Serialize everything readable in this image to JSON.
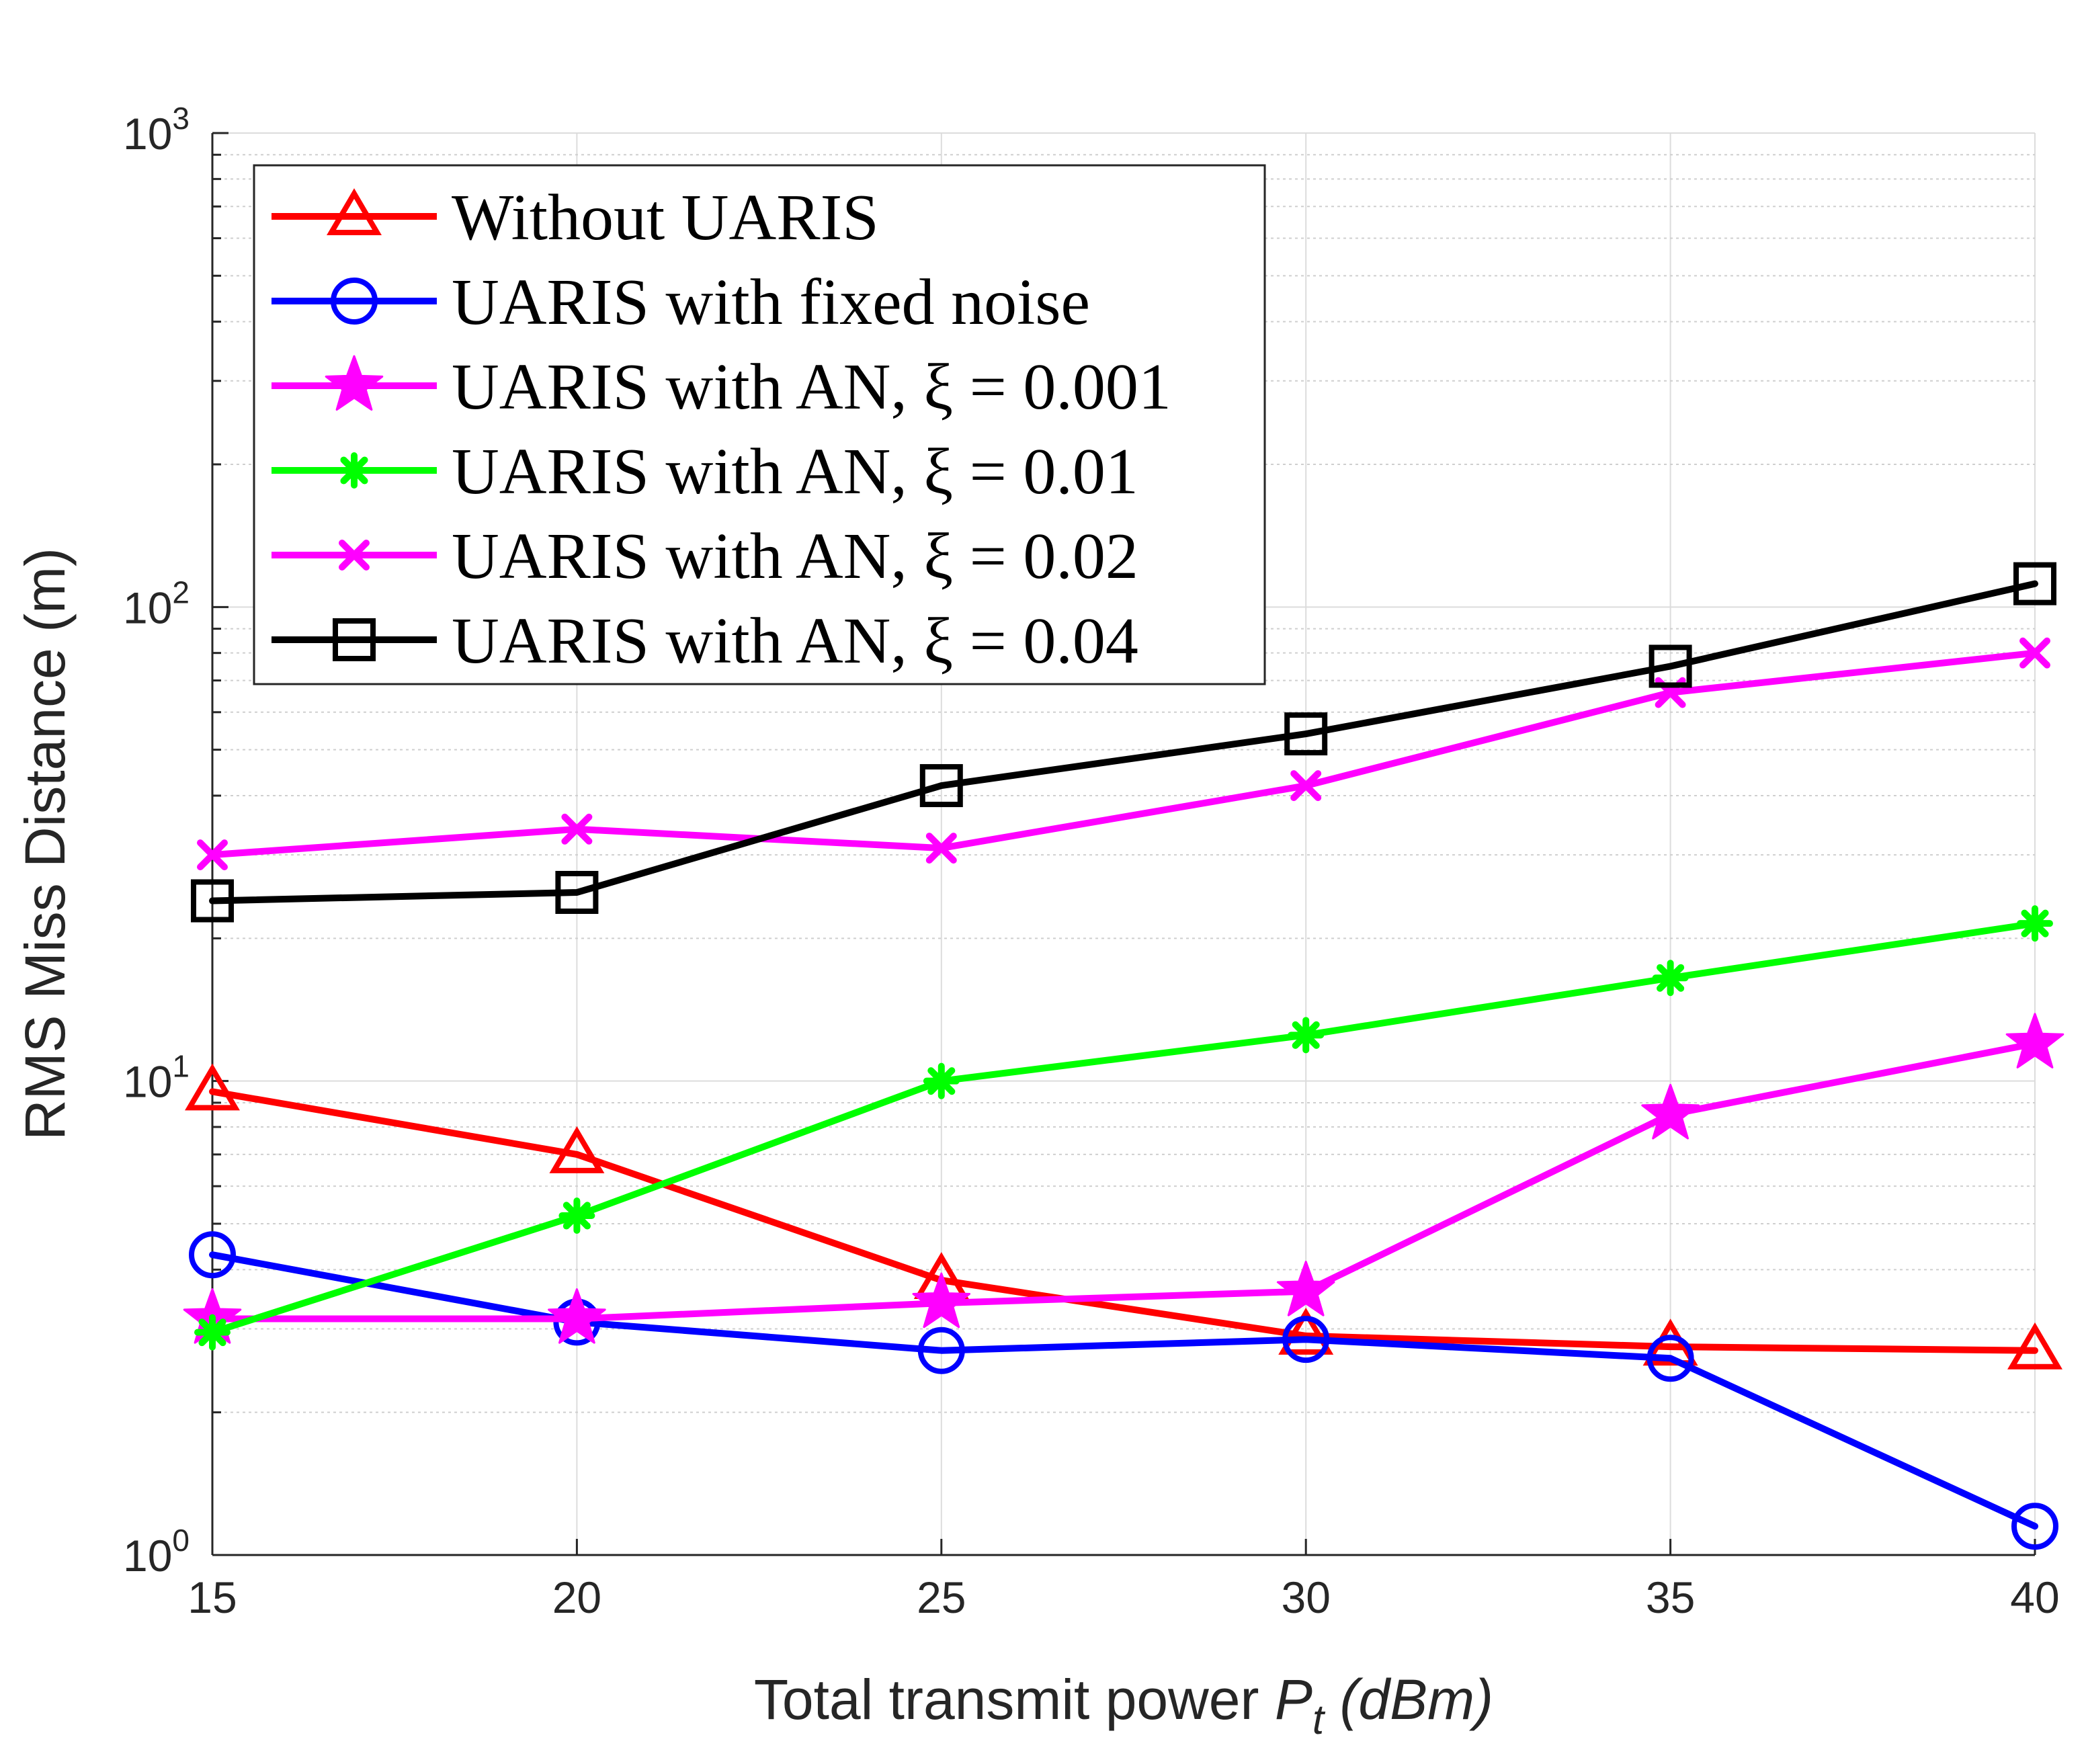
{
  "chart_data": {
    "type": "line",
    "title": "",
    "xlabel": "Total transmit power",
    "xlabel_symbol": "P",
    "xlabel_subscript": "t",
    "xlabel_unit": "(dBm)",
    "ylabel": "RMS Miss Distance (m)",
    "yscale": "log",
    "xlim": [
      15,
      40
    ],
    "ylim": [
      1,
      1000
    ],
    "grid": true,
    "legend_position": "top-left",
    "x": [
      15,
      20,
      25,
      30,
      35,
      40
    ],
    "x_tick_labels": [
      "15",
      "20",
      "25",
      "30",
      "35",
      "40"
    ],
    "y_ticks": [
      {
        "base": "10",
        "exp": "0"
      },
      {
        "base": "10",
        "exp": "1"
      },
      {
        "base": "10",
        "exp": "2"
      },
      {
        "base": "10",
        "exp": "3"
      }
    ],
    "series": [
      {
        "name": "Without UARIS",
        "color": "#ff0000",
        "marker": "triangle",
        "values": [
          9.5,
          7.0,
          3.8,
          2.9,
          2.75,
          2.7
        ]
      },
      {
        "name": "UARIS with fixed noise",
        "color": "#0000ff",
        "marker": "circle",
        "values": [
          4.3,
          3.1,
          2.7,
          2.85,
          2.6,
          1.15
        ]
      },
      {
        "name": "UARIS with AN, ξ = 0.001",
        "color": "#ff00ff",
        "marker": "star",
        "values": [
          3.15,
          3.15,
          3.4,
          3.6,
          8.5,
          12.0
        ]
      },
      {
        "name": "UARIS with AN, ξ = 0.01",
        "color": "#00ff00",
        "marker": "asterisk",
        "values": [
          2.95,
          5.2,
          10.0,
          12.5,
          16.5,
          21.5
        ]
      },
      {
        "name": "UARIS with AN, ξ = 0.02",
        "color": "#ff00ff",
        "marker": "x",
        "values": [
          30,
          34,
          31,
          42,
          66,
          80
        ]
      },
      {
        "name": "UARIS with AN, ξ = 0.04",
        "color": "#000000",
        "marker": "square",
        "values": [
          24,
          25,
          42,
          54,
          75,
          112
        ]
      }
    ]
  }
}
